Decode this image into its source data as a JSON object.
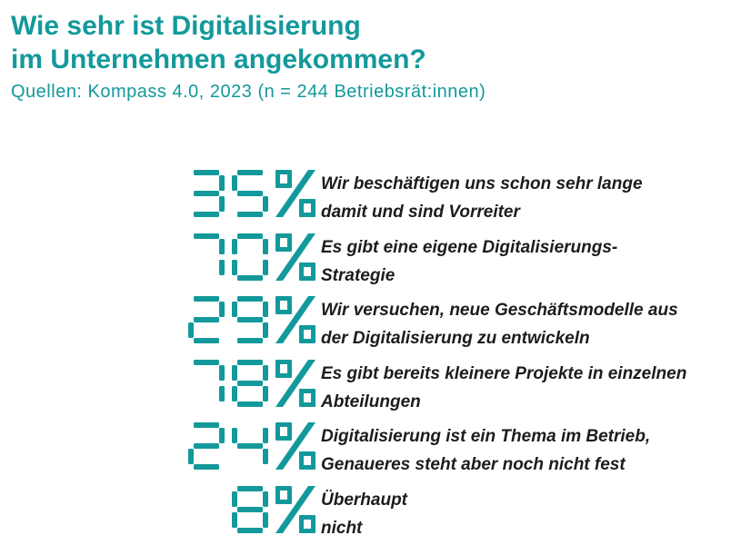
{
  "title_lines": [
    "Wie sehr ist Digitalisierung",
    "im Unternehmen angekommen?"
  ],
  "subtitle": "Quellen: Kompass 4.0, 2023 (n = 244 Betriebsrät:innen)",
  "colors": {
    "accent": "#13999b",
    "text": "#1c1c1c"
  },
  "chart_data": {
    "type": "table",
    "unit": "%",
    "rows": [
      {
        "value": 35,
        "display": "35%",
        "label_lines": [
          "Wir beschäftigen uns schon sehr lange",
          "damit und sind Vorreiter"
        ]
      },
      {
        "value": 70,
        "display": "70%",
        "label_lines": [
          "Es gibt eine eigene Digitalisierungs-",
          "Strategie"
        ]
      },
      {
        "value": 29,
        "display": "29%",
        "label_lines": [
          "Wir versuchen, neue Geschäftsmodelle aus",
          "der Digitalisierung zu entwickeln"
        ]
      },
      {
        "value": 78,
        "display": "78%",
        "label_lines": [
          "Es gibt bereits kleinere Projekte in einzelnen",
          "Abteilungen"
        ]
      },
      {
        "value": 24,
        "display": "24%",
        "label_lines": [
          "Digitalisierung ist ein Thema im Betrieb,",
          "Genaueres steht aber noch nicht fest"
        ]
      },
      {
        "value": 8,
        "display": "8%",
        "label_lines": [
          "Überhaupt",
          "nicht"
        ]
      }
    ]
  }
}
